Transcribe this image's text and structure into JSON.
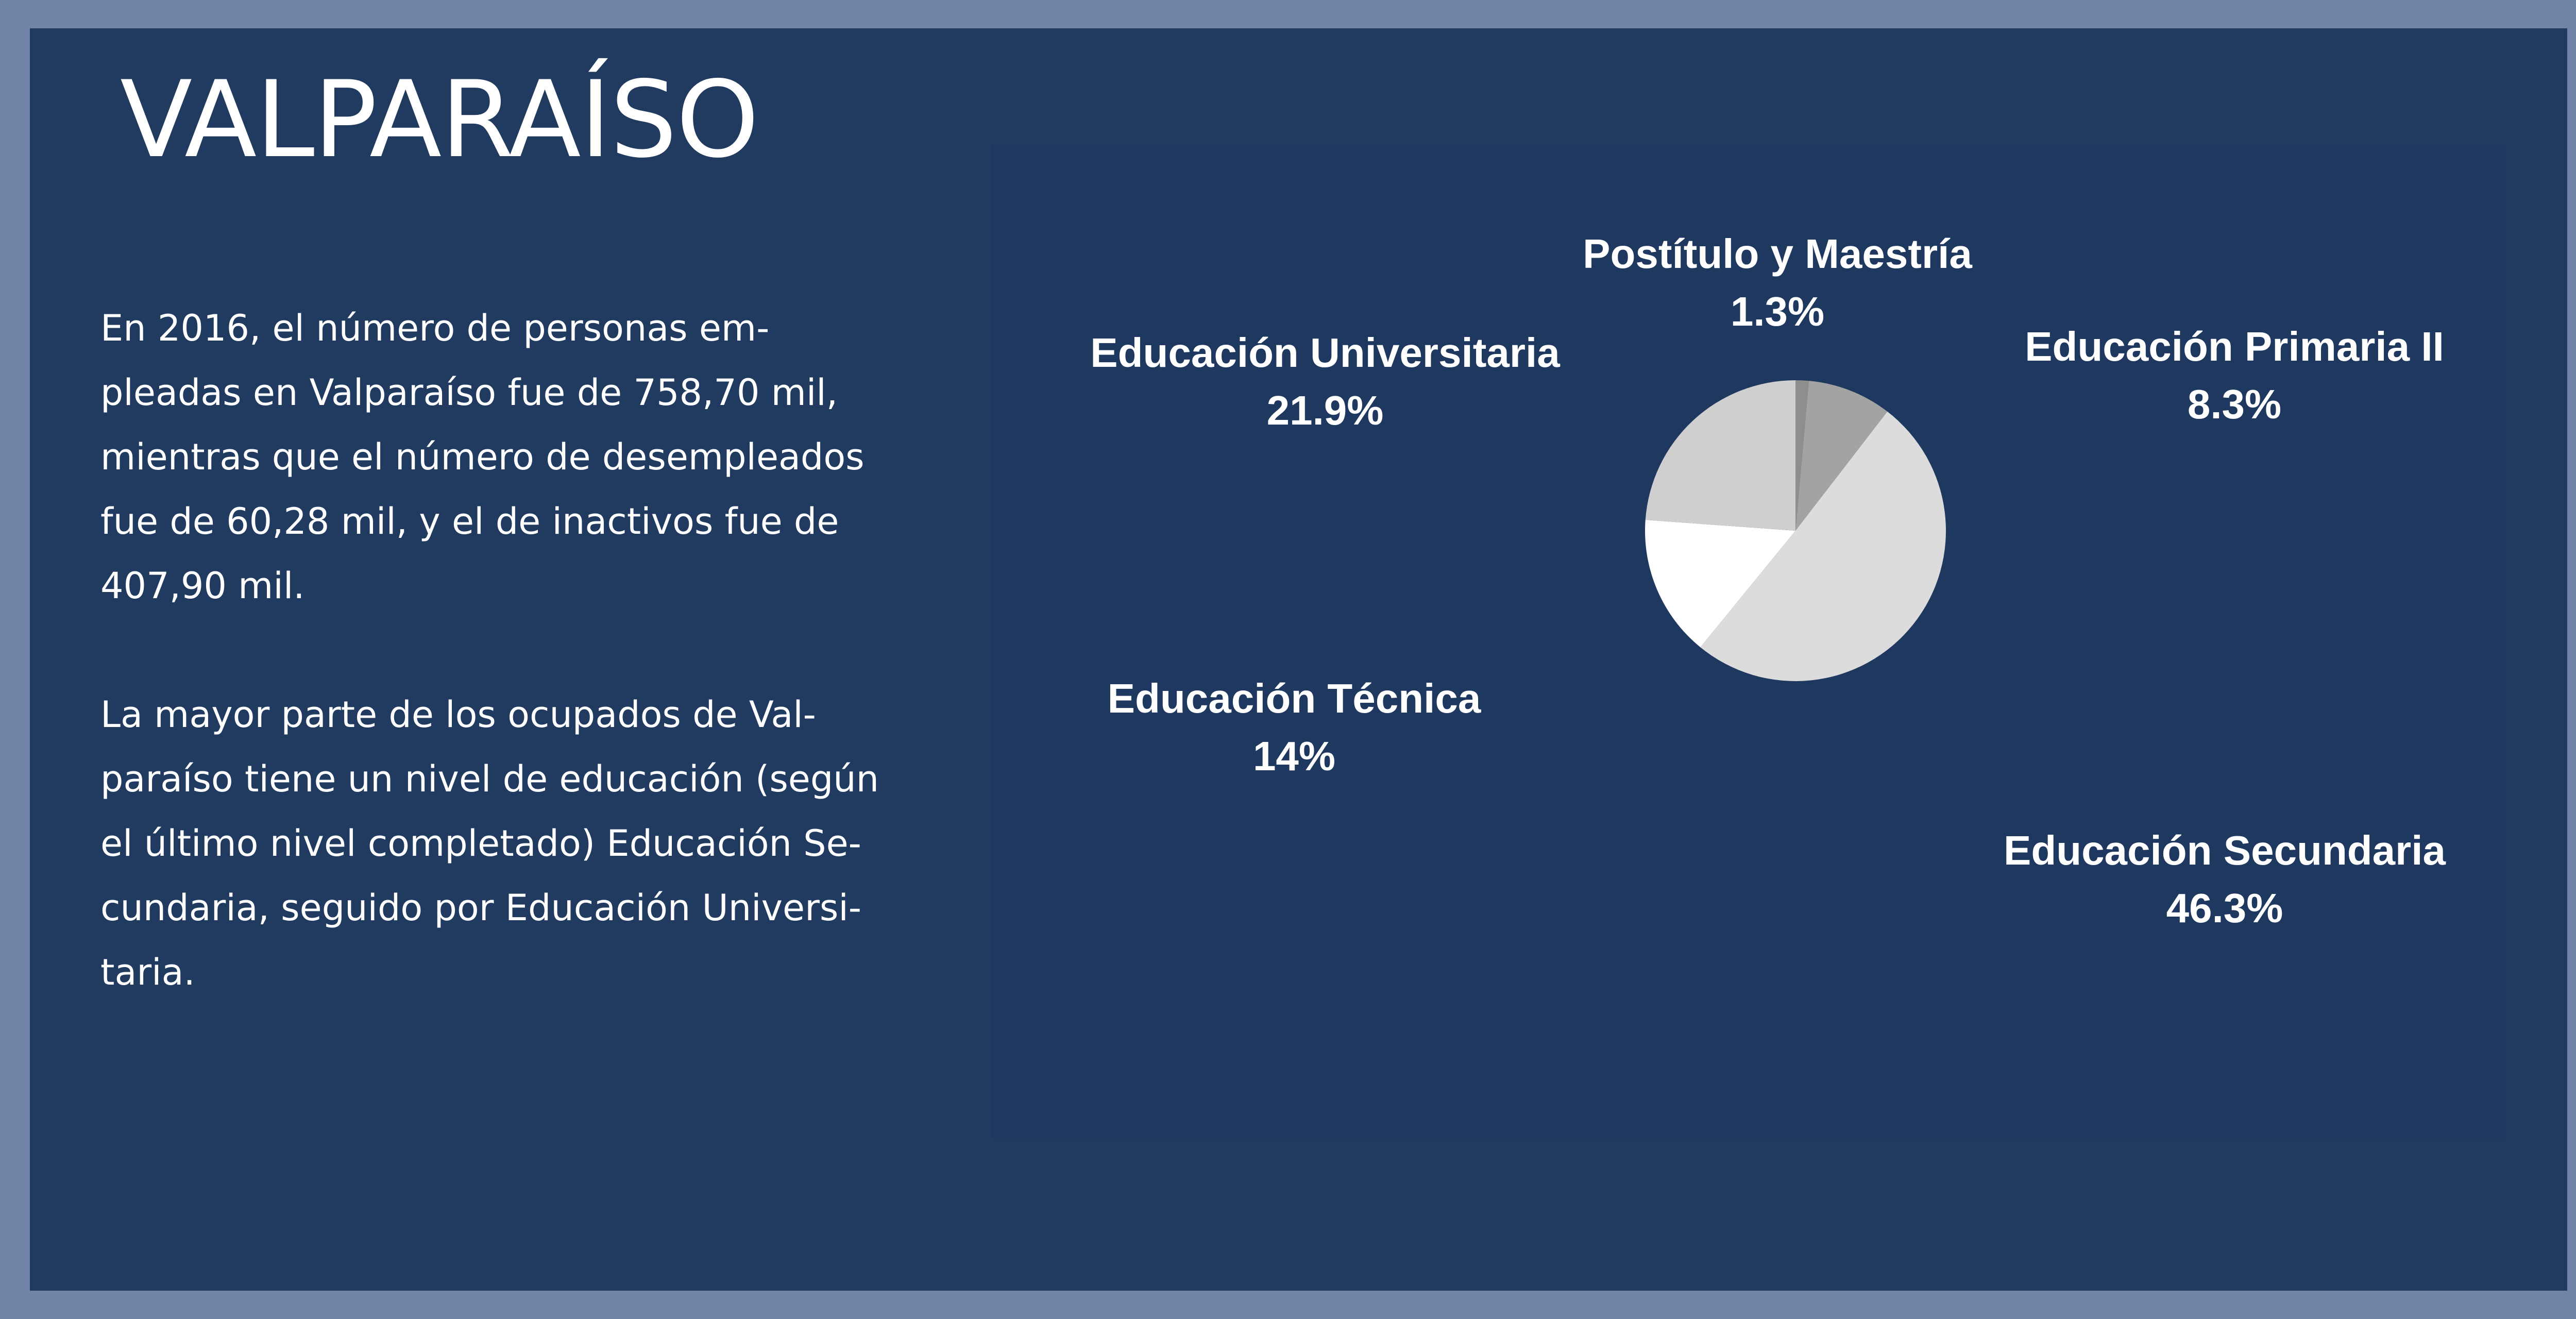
{
  "page": {
    "title": "VALPARAÍSO",
    "paragraphs": [
      "En 2016, el número de personas em-\npleadas en Valparaíso fue de 758,70 mil,\nmientras que el número de desempleados\nfue de 60,28 mil, y el de inactivos fue de\n407,90 mil.",
      "La mayor parte de los ocupados de Val-\nparaíso tiene un nivel de educación (según\nel último nivel completado) Educación Se-\ncundaria, seguido por Educación Universi-\ntaria."
    ]
  },
  "chart_data": {
    "type": "pie",
    "title": "",
    "slices": [
      {
        "label": "Postítulo y Maestría",
        "value": 1.3,
        "value_label": "1.3%",
        "color": "#8e8e8e"
      },
      {
        "label": "Educación Primaria II",
        "value": 8.3,
        "value_label": "8.3%",
        "color": "#a3a3a3"
      },
      {
        "label": "Educación Secundaria",
        "value": 46.3,
        "value_label": "46.3%",
        "color": "#dcdcdc"
      },
      {
        "label": "Educación Técnica",
        "value": 14,
        "value_label": "14%",
        "color": "#ffffff"
      },
      {
        "label": "Educación Universitaria",
        "value": 21.9,
        "value_label": "21.9%",
        "color": "#cfcfcf"
      }
    ],
    "legend": "none",
    "colors": {
      "background": "#213a60",
      "border": "#6f84a6",
      "text": "#ffffff"
    }
  }
}
